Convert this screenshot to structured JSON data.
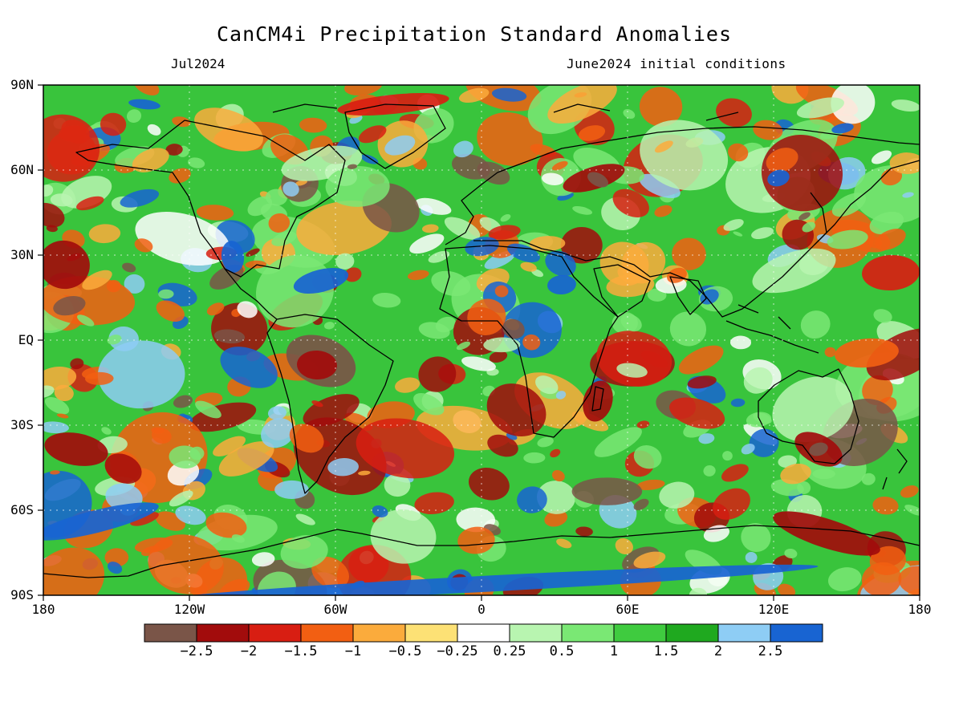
{
  "title": "CanCM4i Precipitation Standard Anomalies",
  "subtitle_left": "Jul2024",
  "subtitle_right": "June2024 initial conditions",
  "lat_labels": [
    "90N",
    "60N",
    "30N",
    "EQ",
    "30S",
    "60S",
    "90S"
  ],
  "lon_labels": [
    "180",
    "120W",
    "60W",
    "0",
    "60E",
    "120E",
    "180"
  ],
  "colorbar": {
    "colors": [
      "#7a5548",
      "#a20c0c",
      "#d81e12",
      "#f25f12",
      "#fbab3c",
      "#fde175",
      "#ffffff",
      "#b8f5b0",
      "#7ae874",
      "#3fcb3f",
      "#1fa91f",
      "#8ecdf5",
      "#1864d2"
    ],
    "labels": [
      "−2.5",
      "−2",
      "−1.5",
      "−1",
      "−0.5",
      "−0.25",
      "0.25",
      "0.5",
      "1",
      "1.5",
      "2",
      "2.5"
    ]
  },
  "map": {
    "background": "#39c43c",
    "accent_dry_colors": [
      "#f25f12",
      "#fbab3c",
      "#d81e12",
      "#a20c0c",
      "#7a5548"
    ],
    "accent_wet_colors": [
      "#7ae874",
      "#b8f5b0",
      "#8ecdf5",
      "#1864d2",
      "#ffffff"
    ]
  }
}
